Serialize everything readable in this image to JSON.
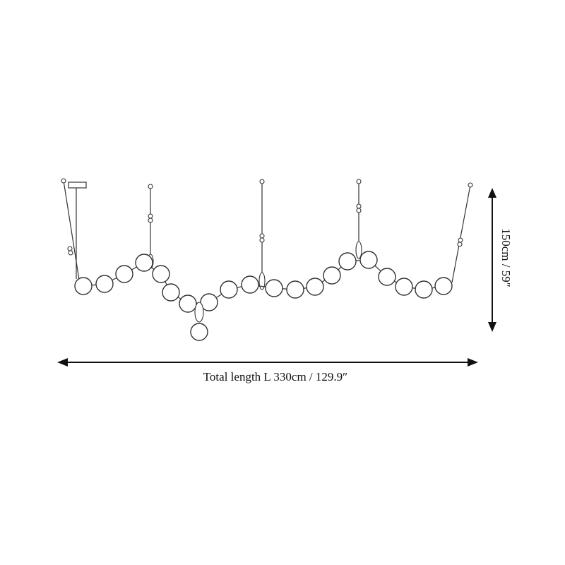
{
  "dimensions": {
    "total_length": "Total length L 330cm / 129.9″",
    "height": "150cm / 59″"
  }
}
